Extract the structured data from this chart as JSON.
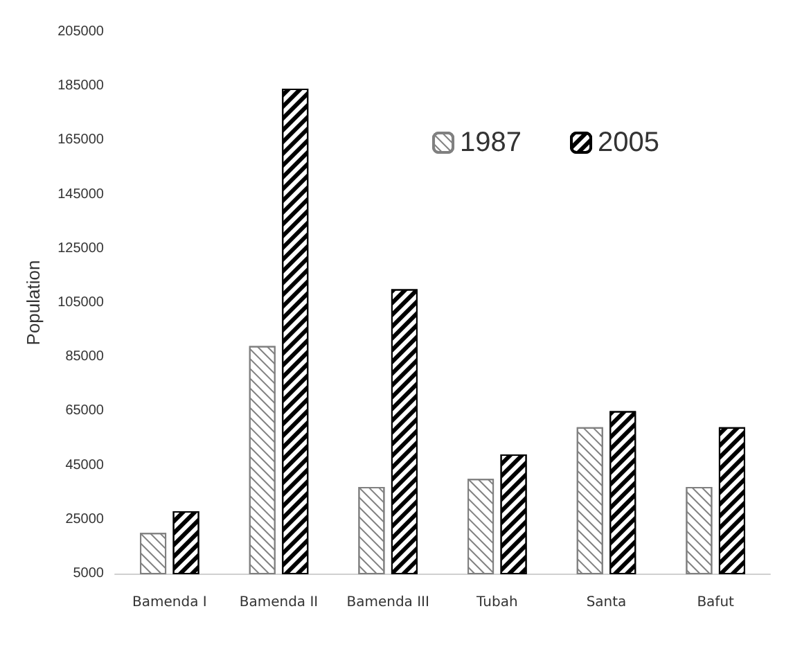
{
  "chart_data": {
    "type": "bar",
    "ylabel": "Population",
    "categories": [
      "Bamenda I",
      "Bamenda II",
      "Bamenda III",
      "Tubah",
      "Santa",
      "Bafut"
    ],
    "series": [
      {
        "name": "1987",
        "color": "#808080",
        "values": [
          20000,
          89000,
          37000,
          40000,
          59000,
          37000
        ]
      },
      {
        "name": "2005",
        "color": "#000000",
        "values": [
          28000,
          184000,
          110000,
          49000,
          65000,
          59000
        ]
      }
    ],
    "ylim": [
      5000,
      205000
    ],
    "yticks": [
      5000,
      25000,
      45000,
      65000,
      85000,
      105000,
      125000,
      145000,
      165000,
      185000,
      205000
    ],
    "grid": false,
    "legend": "top right"
  }
}
